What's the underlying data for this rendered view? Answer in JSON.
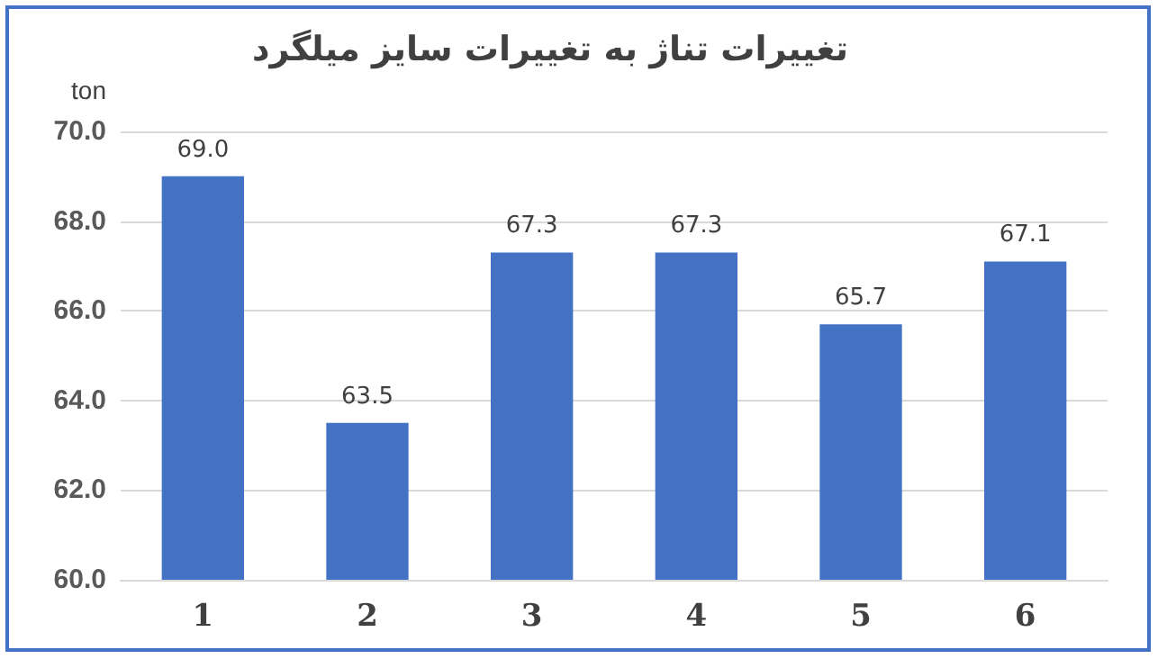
{
  "chart_data": {
    "type": "bar",
    "title": "تغییرات تناژ به تغییرات سایز میلگرد",
    "ylabel": "ton",
    "categories": [
      "1",
      "2",
      "3",
      "4",
      "5",
      "6"
    ],
    "values": [
      69.0,
      63.5,
      67.3,
      67.3,
      65.7,
      67.1
    ],
    "value_labels": [
      "69.0",
      "63.5",
      "67.3",
      "67.3",
      "65.7",
      "67.1"
    ],
    "color": "#4472c4",
    "ylim": [
      60,
      70
    ],
    "yticks": [
      {
        "value": 60,
        "label": "60.0"
      },
      {
        "value": 62,
        "label": "62.0"
      },
      {
        "value": 64,
        "label": "64.0"
      },
      {
        "value": 66,
        "label": "66.0"
      },
      {
        "value": 68,
        "label": "68.0"
      },
      {
        "value": 70,
        "label": "70.0"
      }
    ],
    "grid": "y"
  }
}
